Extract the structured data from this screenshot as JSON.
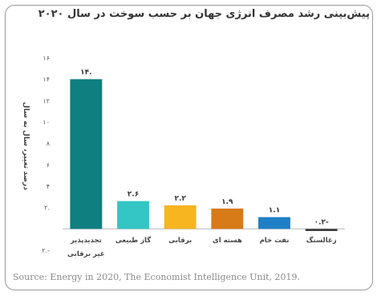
{
  "title": "پیش‌بینی رشد مصرف انرژی جهان بر حسب سوخت در سال ۲۰۲۰",
  "source": "Source: Energy in 2020, The Economist Intelligence Unit, 2019.",
  "chart_data": {
    "type": "bar",
    "title": "پیش‌بینی رشد مصرف انرژی جهان بر حسب سوخت در سال ۲۰۲۰",
    "ylabel": "درصد تغییر، سال به سال",
    "xlabel": "",
    "ylim": [
      -2,
      16
    ],
    "yticks": [
      -2,
      2,
      4,
      6,
      8,
      10,
      12,
      14,
      16
    ],
    "ytick_labels": [
      "۲.-",
      "۲.",
      "۴",
      "۶",
      "۸",
      "۱۰",
      "۱۲",
      "۱۴",
      "۱۶"
    ],
    "grid": false,
    "legend": "none",
    "categories": [
      {
        "label": "تجدیدپذیر غیر برقابی",
        "value": 14.0,
        "value_label": "۱۴.",
        "color": "#0f7f80"
      },
      {
        "label": "گاز طبیعی",
        "value": 2.6,
        "value_label": "۲.۶",
        "color": "#33c6c4"
      },
      {
        "label": "برقابی",
        "value": 2.2,
        "value_label": "۲.۲",
        "color": "#f7b520"
      },
      {
        "label": "هسته ای",
        "value": 1.9,
        "value_label": "۱.۹",
        "color": "#d77a18"
      },
      {
        "label": "نفت خام",
        "value": 1.1,
        "value_label": "۱.۱",
        "color": "#1f7fc6"
      },
      {
        "label": "زغالسنگ",
        "value": -0.2,
        "value_label": "۰.۲-",
        "color": "#3b3b3b"
      }
    ]
  }
}
